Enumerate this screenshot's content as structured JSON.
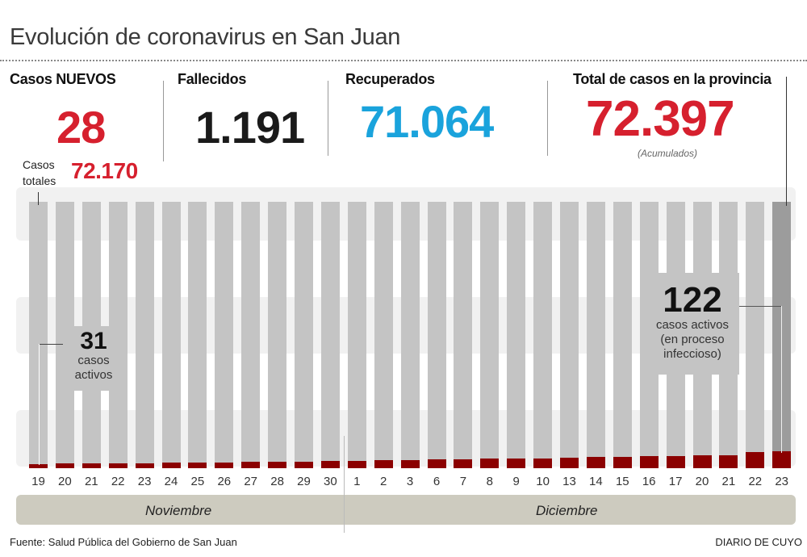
{
  "title": "Evolución de coronavirus en San Juan",
  "stats": {
    "new_cases": {
      "label": "Casos NUEVOS",
      "value": "28",
      "color": "#d6202e"
    },
    "total_cases_label": "Casos totales",
    "total_cases_value": "72.170",
    "deaths": {
      "label": "Fallecidos",
      "value": "1.191",
      "color": "#1a1a1a"
    },
    "recovered": {
      "label": "Recuperados",
      "value": "71.064",
      "color": "#1aa3dc"
    },
    "province_total": {
      "label": "Total de casos en la provincia",
      "value": "72.397",
      "note": "(Acumulados)",
      "color": "#d6202e"
    }
  },
  "annotations": {
    "start": {
      "value": "31",
      "text_1": "casos",
      "text_2": "activos"
    },
    "end": {
      "value": "122",
      "text_1": "casos activos",
      "text_2": "(en proceso",
      "text_3": "infeccioso)"
    }
  },
  "months": [
    "Noviembre",
    "Diciembre"
  ],
  "footer": {
    "source": "Fuente: Salud Pública del Gobierno de San Juan",
    "brand": "DIARIO DE CUYO"
  },
  "chart_data": {
    "type": "bar",
    "stacked": true,
    "categories": [
      "19",
      "20",
      "21",
      "22",
      "23",
      "24",
      "25",
      "26",
      "27",
      "28",
      "29",
      "30",
      "1",
      "2",
      "3",
      "6",
      "7",
      "8",
      "9",
      "10",
      "13",
      "14",
      "15",
      "16",
      "17",
      "20",
      "21",
      "22",
      "23"
    ],
    "series": [
      {
        "name": "casos activos",
        "color": "#8b0000",
        "values": [
          31,
          32,
          33,
          33,
          34,
          38,
          40,
          42,
          46,
          46,
          47,
          50,
          52,
          57,
          58,
          65,
          66,
          72,
          72,
          72,
          76,
          80,
          82,
          86,
          88,
          95,
          95,
          119,
          122
        ]
      },
      {
        "color": "#c4c4c4",
        "highlight_last_color": "#9c9c9c",
        "values_note": "casos totales"
      }
    ],
    "grid": false
  }
}
